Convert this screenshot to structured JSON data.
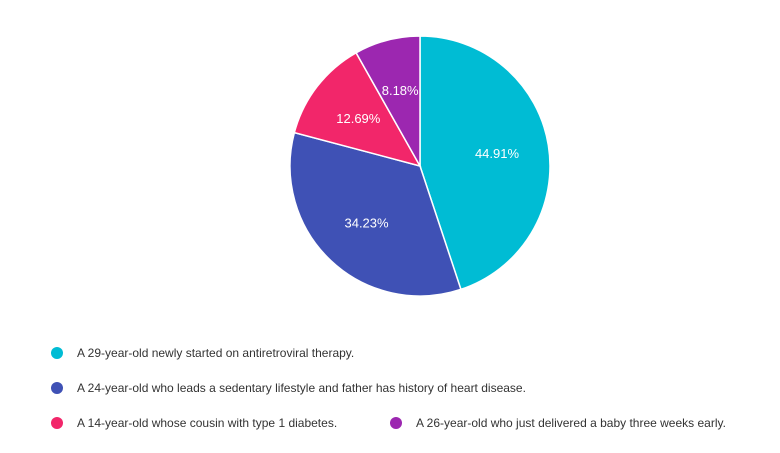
{
  "chart_data": {
    "type": "pie",
    "title": "",
    "slices": [
      {
        "label": "A 29-year-old newly started on antiretroviral therapy.",
        "value": 44.91,
        "display": "44.91%",
        "color": "#00BCD4"
      },
      {
        "label": "A 24-year-old who leads a sedentary lifestyle and father has history of heart disease.",
        "value": 34.23,
        "display": "34.23%",
        "color": "#3F51B5"
      },
      {
        "label": "A 14-year-old whose cousin with type 1 diabetes.",
        "value": 12.69,
        "display": "12.69%",
        "color": "#F2266A"
      },
      {
        "label": "A 26-year-old who just delivered a baby three weeks early.",
        "value": 8.18,
        "display": "8.18%",
        "color": "#9C27B0"
      }
    ],
    "legend_position": "bottom"
  }
}
